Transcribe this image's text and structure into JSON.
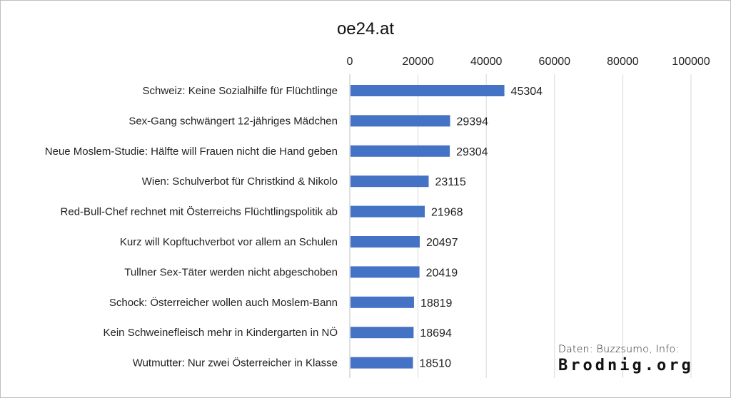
{
  "chart_data": {
    "type": "bar",
    "orientation": "horizontal",
    "title": "oe24.at",
    "categories": [
      "Schweiz: Keine Sozialhilfe für Flüchtlinge",
      "Sex-Gang schwängert 12-jähriges Mädchen",
      "Neue Moslem-Studie: Hälfte will Frauen nicht die Hand geben",
      "Wien: Schulverbot für Christkind & Nikolo",
      "Red-Bull-Chef rechnet mit Österreichs Flüchtlingspolitik ab",
      "Kurz will Kopftuchverbot vor allem an Schulen",
      "Tullner Sex-Täter werden nicht abgeschoben",
      "Schock: Österreicher wollen auch Moslem-Bann",
      "Kein Schweinefleisch mehr in Kindergarten in NÖ",
      "Wutmutter: Nur zwei Österreicher in Klasse"
    ],
    "values": [
      45304,
      29394,
      29304,
      23115,
      21968,
      20497,
      20419,
      18819,
      18694,
      18510
    ],
    "xlim": [
      0,
      100000
    ],
    "ticks": [
      "0",
      "20000",
      "40000",
      "60000",
      "80000",
      "100000"
    ],
    "xaxis_position": "top",
    "grid": true,
    "legend": "none",
    "bar_color": "#4472c4"
  },
  "credit": {
    "line1": "Daten: Buzzsumo, Info:",
    "line2": "Brodnig.org"
  }
}
